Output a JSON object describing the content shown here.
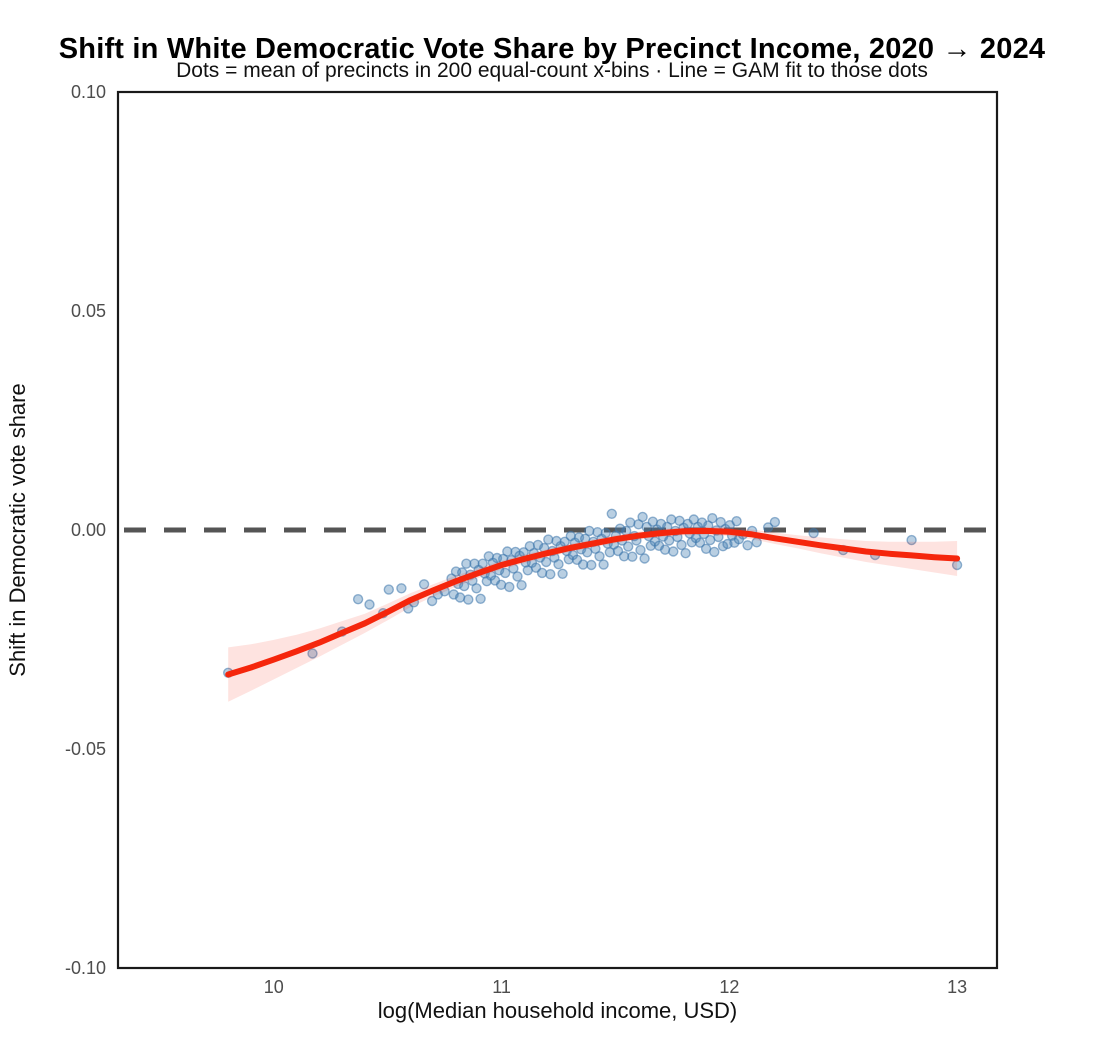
{
  "chart_data": {
    "type": "scatter",
    "title": "Shift in White Democratic Vote Share by Precinct Income, 2020 → 2024",
    "subtitle": "Dots = mean of precincts in 200 equal-count x-bins · Line = GAM fit to those dots",
    "xlabel": "log(Median household income, USD)",
    "ylabel": "Shift in Democratic vote share",
    "xlim": [
      9.316,
      13.175
    ],
    "ylim": [
      -0.1,
      0.1
    ],
    "x_ticks": [
      10,
      11,
      12,
      13
    ],
    "x_tick_labels": [
      "10",
      "11",
      "12",
      "13"
    ],
    "y_ticks": [
      0.1,
      0.05,
      0.0,
      -0.05,
      -0.1
    ],
    "y_tick_labels": [
      "0.10",
      "0.05",
      "0.00",
      "-0.05",
      "-0.10"
    ],
    "grid": "off",
    "legend": "none",
    "reference_line_y": 0,
    "colors": {
      "dot_fill": "#4682B4",
      "dot_stroke": "#3E77AB",
      "fit_line": "#F5260C",
      "ci_band": "#F5260C",
      "zero_line": "#555555",
      "axis": "#1a1a1a",
      "tick_label": "#4d4d4d"
    },
    "series": [
      {
        "name": "binned-precinct-means",
        "type": "scatter",
        "points": [
          [
            9.8,
            -0.0326
          ],
          [
            10.17,
            -0.0282
          ],
          [
            10.3,
            -0.0232
          ],
          [
            10.37,
            -0.0158
          ],
          [
            10.42,
            -0.017
          ],
          [
            10.48,
            -0.019
          ],
          [
            10.505,
            -0.0136
          ],
          [
            10.56,
            -0.0133
          ],
          [
            10.59,
            -0.0179
          ],
          [
            10.615,
            -0.0165
          ],
          [
            10.66,
            -0.0124
          ],
          [
            10.695,
            -0.0162
          ],
          [
            10.72,
            -0.0147
          ],
          [
            10.75,
            -0.014
          ],
          [
            10.78,
            -0.0111
          ],
          [
            10.79,
            -0.0147
          ],
          [
            10.8,
            -0.0095
          ],
          [
            10.809,
            -0.0123
          ],
          [
            10.818,
            -0.0154
          ],
          [
            10.827,
            -0.0097
          ],
          [
            10.836,
            -0.0128
          ],
          [
            10.845,
            -0.0077
          ],
          [
            10.854,
            -0.0159
          ],
          [
            10.863,
            -0.0102
          ],
          [
            10.872,
            -0.0116
          ],
          [
            10.881,
            -0.0077
          ],
          [
            10.89,
            -0.0133
          ],
          [
            10.899,
            -0.0091
          ],
          [
            10.908,
            -0.0157
          ],
          [
            10.917,
            -0.0077
          ],
          [
            10.926,
            -0.0099
          ],
          [
            10.935,
            -0.0117
          ],
          [
            10.944,
            -0.006
          ],
          [
            10.953,
            -0.0104
          ],
          [
            10.962,
            -0.0075
          ],
          [
            10.971,
            -0.0115
          ],
          [
            10.98,
            -0.0064
          ],
          [
            10.989,
            -0.0092
          ],
          [
            10.998,
            -0.0125
          ],
          [
            11.007,
            -0.0066
          ],
          [
            11.016,
            -0.0098
          ],
          [
            11.025,
            -0.0049
          ],
          [
            11.034,
            -0.013
          ],
          [
            11.043,
            -0.0069
          ],
          [
            11.052,
            -0.0088
          ],
          [
            11.061,
            -0.005
          ],
          [
            11.07,
            -0.0106
          ],
          [
            11.079,
            -0.0059
          ],
          [
            11.088,
            -0.0126
          ],
          [
            11.097,
            -0.0051
          ],
          [
            11.106,
            -0.0074
          ],
          [
            11.115,
            -0.0092
          ],
          [
            11.124,
            -0.0037
          ],
          [
            11.133,
            -0.0075
          ],
          [
            11.142,
            -0.0053
          ],
          [
            11.151,
            -0.0086
          ],
          [
            11.16,
            -0.0034
          ],
          [
            11.169,
            -0.0063
          ],
          [
            11.178,
            -0.0098
          ],
          [
            11.187,
            -0.0041
          ],
          [
            11.196,
            -0.0073
          ],
          [
            11.205,
            -0.0022
          ],
          [
            11.214,
            -0.0101
          ],
          [
            11.223,
            -0.0048
          ],
          [
            11.232,
            -0.0063
          ],
          [
            11.241,
            -0.0025
          ],
          [
            11.25,
            -0.0078
          ],
          [
            11.259,
            -0.0037
          ],
          [
            11.268,
            -0.01
          ],
          [
            11.277,
            -0.0027
          ],
          [
            11.286,
            -0.0048
          ],
          [
            11.295,
            -0.0067
          ],
          [
            11.304,
            -0.0014
          ],
          [
            11.313,
            -0.0057
          ],
          [
            11.322,
            -0.0029
          ],
          [
            11.331,
            -0.0068
          ],
          [
            11.34,
            -0.0017
          ],
          [
            11.349,
            -0.0044
          ],
          [
            11.358,
            -0.0079
          ],
          [
            11.367,
            -0.002
          ],
          [
            11.376,
            -0.0051
          ],
          [
            11.385,
            -0.0002
          ],
          [
            11.394,
            -0.008
          ],
          [
            11.403,
            -0.0027
          ],
          [
            11.412,
            -0.0043
          ],
          [
            11.421,
            -0.0005
          ],
          [
            11.43,
            -0.006
          ],
          [
            11.439,
            -0.002
          ],
          [
            11.448,
            -0.0079
          ],
          [
            11.457,
            -0.0007
          ],
          [
            11.466,
            -0.0031
          ],
          [
            11.475,
            -0.0051
          ],
          [
            11.484,
            0.0037
          ],
          [
            11.493,
            -0.0033
          ],
          [
            11.502,
            -0.0013
          ],
          [
            11.511,
            -0.0048
          ],
          [
            11.52,
            0.0003
          ],
          [
            11.529,
            -0.0024
          ],
          [
            11.538,
            -0.006
          ],
          [
            11.547,
            -0.0002
          ],
          [
            11.556,
            -0.0038
          ],
          [
            11.565,
            0.0017
          ],
          [
            11.574,
            -0.0061
          ],
          [
            11.583,
            -0.0014
          ],
          [
            11.592,
            -0.0024
          ],
          [
            11.601,
            0.0013
          ],
          [
            11.61,
            -0.0046
          ],
          [
            11.619,
            0.003
          ],
          [
            11.628,
            -0.0065
          ],
          [
            11.637,
            0.0007
          ],
          [
            11.646,
            -0.0014
          ],
          [
            11.655,
            -0.0036
          ],
          [
            11.664,
            0.0019
          ],
          [
            11.673,
            -0.0026
          ],
          [
            11.682,
            0.0001
          ],
          [
            11.691,
            -0.0036
          ],
          [
            11.7,
            0.0014
          ],
          [
            11.709,
            -0.0015
          ],
          [
            11.718,
            -0.0045
          ],
          [
            11.727,
            0.0007
          ],
          [
            11.736,
            -0.0024
          ],
          [
            11.745,
            0.0024
          ],
          [
            11.754,
            -0.0049
          ],
          [
            11.763,
            -0.0002
          ],
          [
            11.772,
            -0.0016
          ],
          [
            11.781,
            0.0021
          ],
          [
            11.79,
            -0.0034
          ],
          [
            11.799,
            0.0005
          ],
          [
            11.808,
            -0.0053
          ],
          [
            11.817,
            0.0014
          ],
          [
            11.826,
            -0.0008
          ],
          [
            11.835,
            -0.0028
          ],
          [
            11.844,
            0.0024
          ],
          [
            11.853,
            -0.0018
          ],
          [
            11.862,
            0.0007
          ],
          [
            11.871,
            -0.0029
          ],
          [
            11.88,
            0.0017
          ],
          [
            11.889,
            -0.0009
          ],
          [
            11.898,
            -0.0043
          ],
          [
            11.907,
            0.001
          ],
          [
            11.916,
            -0.0023
          ],
          [
            11.925,
            0.0027
          ],
          [
            11.934,
            -0.005
          ],
          [
            11.943,
            -0.0001
          ],
          [
            11.952,
            -0.0016
          ],
          [
            11.962,
            0.0018
          ],
          [
            11.972,
            -0.0037
          ],
          [
            11.982,
            0.0002
          ],
          [
            11.992,
            -0.0032
          ],
          [
            12.002,
            0.0011
          ],
          [
            12.012,
            -0.0013
          ],
          [
            12.022,
            -0.0029
          ],
          [
            12.032,
            0.002
          ],
          [
            12.042,
            -0.0021
          ],
          [
            12.06,
            -0.001
          ],
          [
            12.08,
            -0.0035
          ],
          [
            12.1,
            -0.0002
          ],
          [
            12.12,
            -0.0028
          ],
          [
            12.17,
            0.0006
          ],
          [
            12.2,
            0.0018
          ],
          [
            12.37,
            -0.0007
          ],
          [
            12.5,
            -0.0046
          ],
          [
            12.64,
            -0.0057
          ],
          [
            12.8,
            -0.0023
          ],
          [
            13.0,
            -0.008
          ]
        ]
      },
      {
        "name": "gam-fit",
        "type": "line",
        "x": [
          9.8,
          9.9,
          10.0,
          10.1,
          10.2,
          10.3,
          10.4,
          10.5,
          10.6,
          10.7,
          10.8,
          10.9,
          11.0,
          11.1,
          11.2,
          11.3,
          11.4,
          11.5,
          11.6,
          11.7,
          11.8,
          11.9,
          12.0,
          12.1,
          12.2,
          12.3,
          12.4,
          12.5,
          12.6,
          12.7,
          12.8,
          12.9,
          13.0
        ],
        "fit": [
          -0.033,
          -0.0314,
          -0.0296,
          -0.0277,
          -0.0257,
          -0.0235,
          -0.0213,
          -0.0187,
          -0.016,
          -0.0138,
          -0.0117,
          -0.0098,
          -0.008,
          -0.0066,
          -0.0053,
          -0.0041,
          -0.0031,
          -0.0021,
          -0.0013,
          -0.0007,
          -0.0003,
          -0.0002,
          -0.0004,
          -0.001,
          -0.0019,
          -0.0027,
          -0.0035,
          -0.0042,
          -0.0049,
          -0.0054,
          -0.0058,
          -0.0062,
          -0.0065
        ],
        "ci_half_width": [
          0.0062,
          0.0053,
          0.0045,
          0.0038,
          0.0032,
          0.0027,
          0.0022,
          0.0019,
          0.0016,
          0.0014,
          0.0013,
          0.0011,
          0.001,
          0.001,
          0.0009,
          0.0009,
          0.0009,
          0.0009,
          0.0009,
          0.0009,
          0.0009,
          0.0009,
          0.001,
          0.0011,
          0.0013,
          0.0015,
          0.0018,
          0.0021,
          0.0024,
          0.0027,
          0.0031,
          0.0035,
          0.004
        ]
      }
    ]
  }
}
